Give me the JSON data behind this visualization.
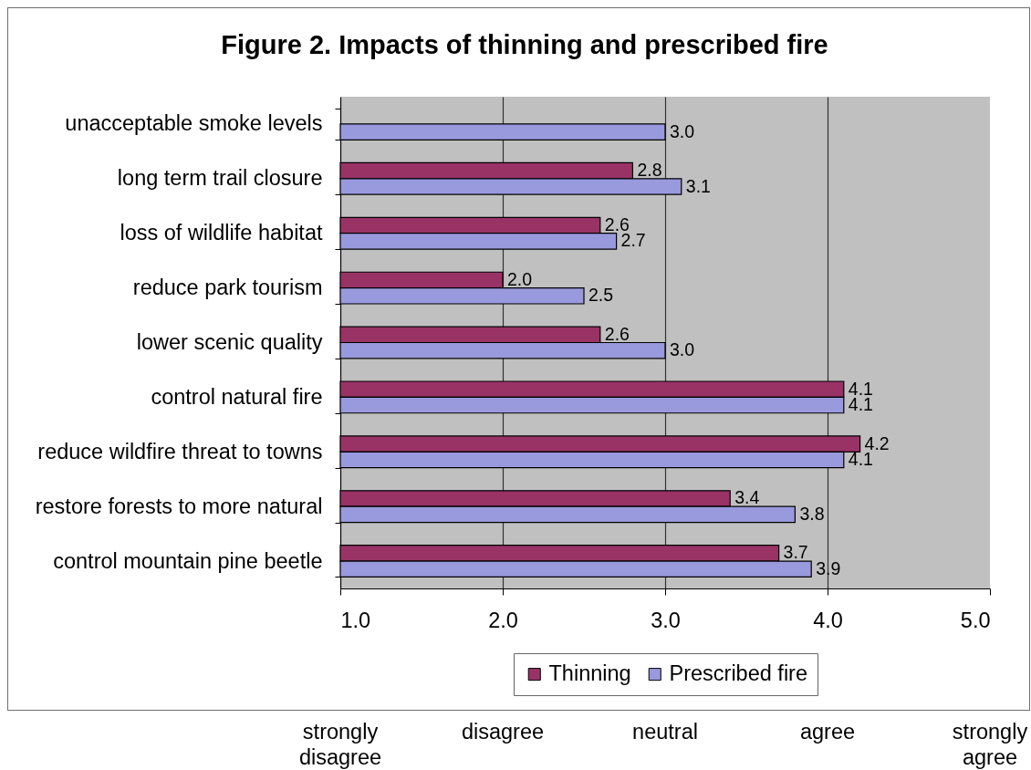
{
  "chart_data": {
    "type": "bar",
    "orientation": "horizontal",
    "title": "Figure 2. Impacts of thinning and prescribed fire",
    "categories": [
      "unacceptable smoke levels",
      "long term trail closure",
      "loss of wildlife habitat",
      "reduce park tourism",
      "lower scenic quality",
      "control natural fire",
      "reduce wildfire threat to towns",
      "restore forests to more natural",
      "control mountain pine beetle"
    ],
    "series": [
      {
        "name": "Thinning",
        "color": "#993366",
        "values": [
          null,
          2.8,
          2.6,
          2.0,
          2.6,
          4.1,
          4.2,
          3.4,
          3.7
        ],
        "value_labels": [
          null,
          "2.8",
          "2.6",
          "2.0",
          "2.6",
          "4.1",
          "4.2",
          "3.4",
          "3.7"
        ]
      },
      {
        "name": "Prescribed fire",
        "color": "#9999dd",
        "values": [
          3.0,
          3.1,
          2.7,
          2.5,
          3.0,
          4.1,
          4.1,
          3.8,
          3.9
        ],
        "value_labels": [
          "3.0",
          "3.1",
          "2.7",
          "2.5",
          "3.0",
          "4.1",
          "4.1",
          "3.8",
          "3.9"
        ]
      }
    ],
    "xlim": [
      1,
      5
    ],
    "xticks": [
      {
        "value": 1,
        "label": "1.0"
      },
      {
        "value": 2,
        "label": "2.0"
      },
      {
        "value": 3,
        "label": "3.0"
      },
      {
        "value": 4,
        "label": "4.0"
      },
      {
        "value": 5,
        "label": "5.0"
      }
    ],
    "grid": "x",
    "legend": "bottom",
    "annotations": [
      "strongly disagree",
      "disagree",
      "neutral",
      "agree",
      "strongly agree"
    ]
  }
}
